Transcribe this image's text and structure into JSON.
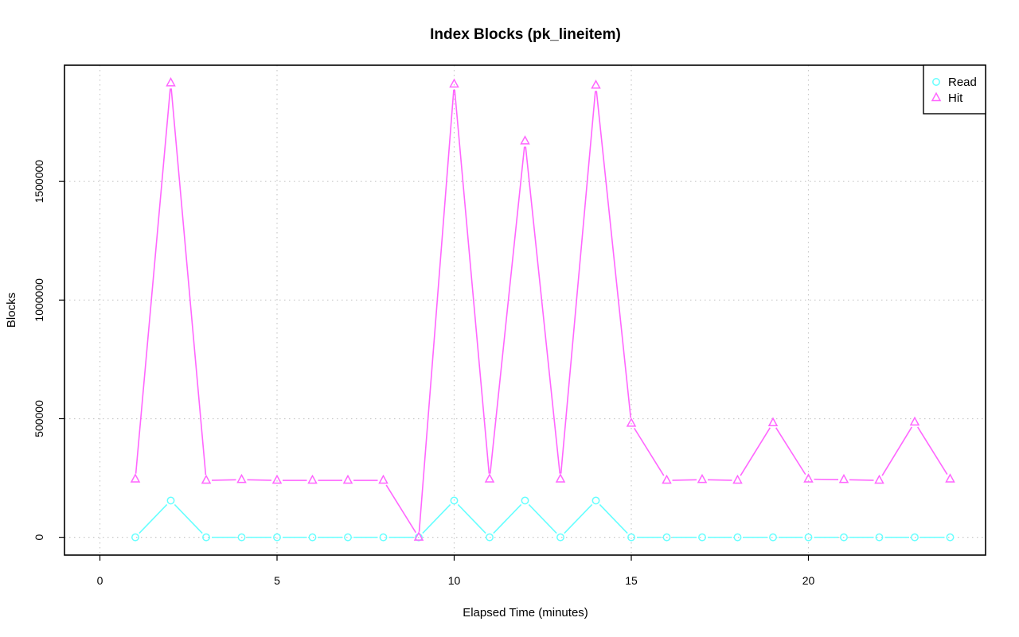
{
  "chart_data": {
    "type": "line",
    "title": "Index Blocks (pk_lineitem)",
    "xlabel": "Elapsed Time (minutes)",
    "ylabel": "Blocks",
    "xlim": [
      -1,
      25
    ],
    "ylim": [
      -75000,
      1990000
    ],
    "x_ticks": [
      0,
      5,
      10,
      15,
      20
    ],
    "y_ticks": [
      0,
      500000,
      1000000,
      1500000
    ],
    "grid": true,
    "legend_position": "top-right",
    "x": [
      1,
      2,
      3,
      4,
      5,
      6,
      7,
      8,
      9,
      10,
      11,
      12,
      13,
      14,
      15,
      16,
      17,
      18,
      19,
      20,
      21,
      22,
      23,
      24
    ],
    "series": [
      {
        "name": "Read",
        "color": "#66ffff",
        "marker": "circle",
        "values": [
          0,
          155000,
          0,
          0,
          0,
          0,
          0,
          0,
          0,
          155000,
          0,
          155000,
          0,
          155000,
          0,
          0,
          0,
          0,
          0,
          0,
          0,
          0,
          0,
          0
        ]
      },
      {
        "name": "Hit",
        "color": "#ff66ff",
        "marker": "triangle",
        "values": [
          245000,
          1915000,
          240000,
          243000,
          240000,
          240000,
          240000,
          240000,
          0,
          1910000,
          245000,
          1670000,
          245000,
          1905000,
          480000,
          240000,
          243000,
          240000,
          482000,
          245000,
          243000,
          240000,
          485000,
          245000
        ]
      }
    ]
  }
}
